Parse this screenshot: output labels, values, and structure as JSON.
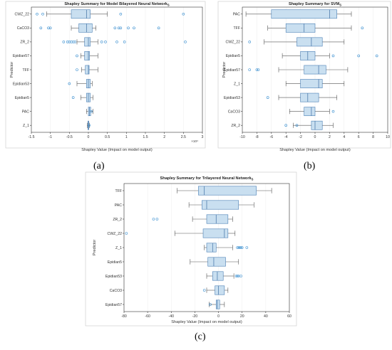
{
  "colors": {
    "box_fill": "#c9dff0",
    "box_stroke": "#4a7fb5",
    "median": "#3f6fa3",
    "whisker": "#555555",
    "outlier": "#3a8fd0",
    "axis": "#333333"
  },
  "captions": [
    "(a)",
    "(b)",
    "(c)"
  ],
  "chart_data": [
    {
      "type": "boxplot",
      "title": "Shapley Summary for Model Bilayered Neural Network",
      "title_subscript": "S",
      "xlabel": "Shapley Value (Impact on model output)",
      "ylabel": "Predictor",
      "xlim": [
        -1.5,
        3
      ],
      "x_exponent": "×10⁴",
      "xticks": [
        "-1.5",
        "-1",
        "-0.5",
        "0",
        "0.5",
        "1",
        "1.5",
        "2",
        "2.5",
        "3"
      ],
      "grid": true,
      "categories": [
        "CWZ_22",
        "CaCO3",
        "ZR_2",
        "Epidian57",
        "TFF",
        "Epidian53",
        "Epidian5",
        "PAC",
        "Z_1"
      ],
      "boxes": [
        {
          "min": -1.1,
          "q1": -0.45,
          "median": -0.05,
          "q3": 0.05,
          "max": 0.5,
          "outliers": [
            -1.35,
            -1.2,
            0.85,
            2.5
          ]
        },
        {
          "min": -0.45,
          "q1": -0.25,
          "median": -0.05,
          "q3": 0.1,
          "max": 0.2,
          "outliers": [
            -1.25,
            -1.05,
            -1.0,
            0.7,
            0.8,
            0.85,
            1.05,
            1.2,
            1.85
          ]
        },
        {
          "min": -0.3,
          "q1": -0.1,
          "median": 0.0,
          "q3": 0.05,
          "max": 0.25,
          "outliers": [
            -0.65,
            -0.55,
            -0.5,
            -0.45,
            -0.4,
            -0.35,
            0.35,
            0.45,
            0.75,
            0.95,
            2.55
          ]
        },
        {
          "min": -0.2,
          "q1": -0.1,
          "median": 0.0,
          "q3": 0.03,
          "max": 0.25,
          "outliers": [
            -0.3
          ]
        },
        {
          "min": -0.18,
          "q1": -0.08,
          "median": 0.0,
          "q3": 0.02,
          "max": 0.25,
          "outliers": [
            -0.3
          ]
        },
        {
          "min": -0.3,
          "q1": -0.05,
          "median": 0.0,
          "q3": 0.05,
          "max": 0.1,
          "outliers": [
            -0.5
          ]
        },
        {
          "min": -0.2,
          "q1": -0.05,
          "median": 0.0,
          "q3": 0.05,
          "max": 0.12,
          "outliers": [
            -0.4
          ]
        },
        {
          "min": -0.05,
          "q1": 0.0,
          "median": 0.03,
          "q3": 0.06,
          "max": 0.12,
          "outliers": [
            0.08
          ]
        },
        {
          "min": -0.03,
          "q1": -0.01,
          "median": 0.0,
          "q3": 0.01,
          "max": 0.03,
          "outliers": [
            0.02
          ]
        }
      ]
    },
    {
      "type": "boxplot",
      "title": "Shapley Summary for SVM",
      "title_subscript": "S",
      "xlabel": "Shapley Value (Impact on model output)",
      "ylabel": "Predictor",
      "xlim": [
        -10,
        10
      ],
      "x_exponent": "",
      "xticks": [
        "-10",
        "-8",
        "-6",
        "-4",
        "-2",
        "0",
        "2",
        "4",
        "6",
        "8",
        "10"
      ],
      "grid": true,
      "categories": [
        "PAC",
        "TFF",
        "CWZ_22",
        "Epidian5",
        "Epidian57",
        "Z_1",
        "Epidian53",
        "CaCO3",
        "ZR_2"
      ],
      "boxes": [
        {
          "min": -9.5,
          "q1": -6,
          "median": 2,
          "q3": 3,
          "max": 5,
          "outliers": []
        },
        {
          "min": -6.5,
          "q1": -4,
          "median": -1.5,
          "q3": 0,
          "max": 5,
          "outliers": [
            6.5
          ]
        },
        {
          "min": -7,
          "q1": -2.5,
          "median": -0.5,
          "q3": 1,
          "max": 4,
          "outliers": [
            -9
          ]
        },
        {
          "min": -4.5,
          "q1": -2,
          "median": -1,
          "q3": 0,
          "max": 2,
          "outliers": [
            2.5,
            6,
            8.5
          ]
        },
        {
          "min": -5,
          "q1": -1.5,
          "median": 0.5,
          "q3": 1.5,
          "max": 4.5,
          "outliers": [
            -9,
            -8,
            -7.8
          ]
        },
        {
          "min": -4,
          "q1": -2,
          "median": 0.5,
          "q3": 1,
          "max": 4,
          "outliers": []
        },
        {
          "min": -5,
          "q1": -2,
          "median": -1,
          "q3": 0.5,
          "max": 3,
          "outliers": [
            -6.5
          ]
        },
        {
          "min": -3.5,
          "q1": -1.5,
          "median": -0.5,
          "q3": 0,
          "max": 2,
          "outliers": [
            2.5
          ]
        },
        {
          "min": -3,
          "q1": -0.5,
          "median": 0,
          "q3": 1,
          "max": 2.5,
          "outliers": [
            -4,
            -2.5
          ]
        }
      ]
    },
    {
      "type": "boxplot",
      "title": "Shapley Summary for Trilayered Neural Network",
      "title_subscript": "S",
      "xlabel": "Shapley Value (Impact on model output)",
      "ylabel": "Predictor",
      "xlim": [
        -80,
        60
      ],
      "x_exponent": "",
      "xticks": [
        "-80",
        "-60",
        "-40",
        "-20",
        "0",
        "20",
        "40",
        "60"
      ],
      "grid": true,
      "categories": [
        "TFF",
        "PAC",
        "ZR_2",
        "CWZ_22",
        "Z_1",
        "Epidian5",
        "Epidian53",
        "CaCO3",
        "Epidian57"
      ],
      "boxes": [
        {
          "min": -35,
          "q1": -17,
          "median": -12,
          "q3": 32,
          "max": 45,
          "outliers": []
        },
        {
          "min": -25,
          "q1": -14,
          "median": -10,
          "q3": 17,
          "max": 30,
          "outliers": []
        },
        {
          "min": -22,
          "q1": -10,
          "median": -2,
          "q3": 8,
          "max": 12,
          "outliers": [
            -55,
            -52
          ]
        },
        {
          "min": -37,
          "q1": -13,
          "median": 5,
          "q3": 8,
          "max": 14,
          "outliers": [
            -78
          ]
        },
        {
          "min": -12,
          "q1": -10,
          "median": -5,
          "q3": -2,
          "max": 12,
          "outliers": [
            16,
            17,
            18,
            19,
            20,
            24
          ]
        },
        {
          "min": -24,
          "q1": -9,
          "median": -4,
          "q3": 6,
          "max": 17,
          "outliers": []
        },
        {
          "min": -10,
          "q1": -5,
          "median": -1,
          "q3": 4,
          "max": 13,
          "outliers": [
            15,
            16,
            17,
            19
          ]
        },
        {
          "min": -10,
          "q1": -3,
          "median": 0,
          "q3": 5,
          "max": 8,
          "outliers": [
            -12
          ]
        },
        {
          "min": -8,
          "q1": -2,
          "median": -1,
          "q3": 1,
          "max": 5,
          "outliers": [
            -7
          ]
        }
      ]
    }
  ]
}
